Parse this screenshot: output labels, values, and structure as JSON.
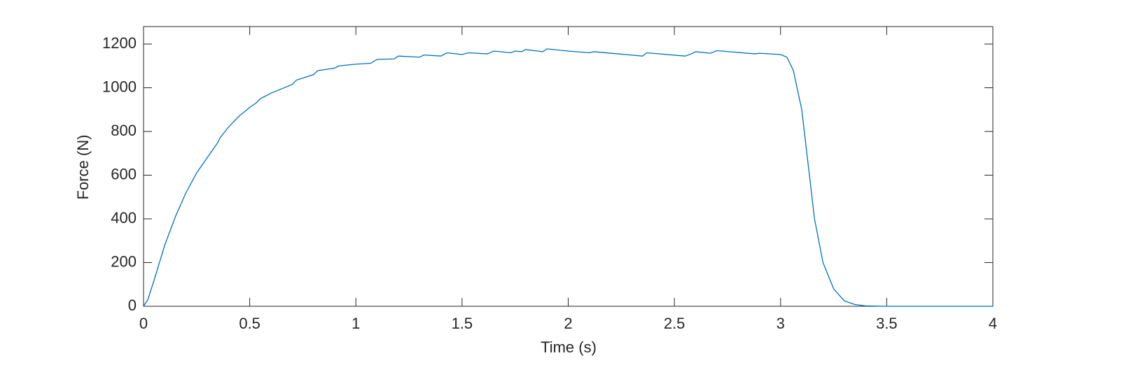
{
  "chart_data": {
    "type": "line",
    "xlabel": "Time (s)",
    "ylabel": "Force (N)",
    "xlim": [
      0,
      4
    ],
    "ylim": [
      0,
      1280
    ],
    "xticks": [
      0,
      0.5,
      1,
      1.5,
      2,
      2.5,
      3,
      3.5,
      4
    ],
    "yticks": [
      0,
      200,
      400,
      600,
      800,
      1000,
      1200
    ],
    "grid": false,
    "x": [
      0,
      0.02,
      0.05,
      0.1,
      0.15,
      0.2,
      0.25,
      0.3,
      0.35,
      0.36,
      0.4,
      0.45,
      0.5,
      0.53,
      0.55,
      0.6,
      0.65,
      0.7,
      0.72,
      0.8,
      0.82,
      0.9,
      0.92,
      1.0,
      1.07,
      1.1,
      1.18,
      1.2,
      1.3,
      1.32,
      1.4,
      1.43,
      1.5,
      1.53,
      1.62,
      1.65,
      1.73,
      1.75,
      1.78,
      1.8,
      1.88,
      1.9,
      2.0,
      2.1,
      2.12,
      2.35,
      2.37,
      2.55,
      2.58,
      2.6,
      2.67,
      2.7,
      2.88,
      2.9,
      3.0,
      3.03,
      3.06,
      3.1,
      3.13,
      3.16,
      3.2,
      3.25,
      3.3,
      3.35,
      3.4,
      3.5,
      4.0
    ],
    "series": [
      {
        "name": "Force",
        "color": "#0072bd",
        "values": [
          0,
          30,
          120,
          280,
          410,
          520,
          610,
          680,
          750,
          770,
          820,
          870,
          910,
          930,
          950,
          975,
          995,
          1015,
          1035,
          1060,
          1078,
          1090,
          1100,
          1108,
          1112,
          1130,
          1132,
          1145,
          1140,
          1150,
          1145,
          1160,
          1152,
          1160,
          1155,
          1168,
          1160,
          1168,
          1165,
          1175,
          1165,
          1178,
          1168,
          1160,
          1165,
          1145,
          1160,
          1145,
          1155,
          1165,
          1158,
          1170,
          1155,
          1158,
          1152,
          1140,
          1080,
          900,
          650,
          400,
          200,
          80,
          25,
          8,
          2,
          0,
          0
        ]
      }
    ]
  }
}
